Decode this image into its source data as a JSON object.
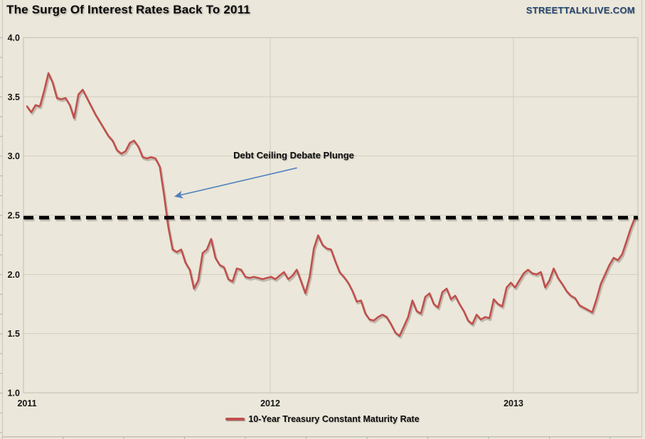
{
  "header": {
    "title": "The Surge Of Interest Rates Back To 2011",
    "brand": "STREETTALKLIVE.COM"
  },
  "legend": {
    "label": "10-Year Treasury Constant Maturity Rate"
  },
  "colors": {
    "background": "#ebe7da",
    "series_red": "#c0504d",
    "reference_black": "#050505",
    "arrow_blue": "#4f81bd",
    "brand_navy": "#24456e",
    "gridline": "#d0ccbf"
  },
  "chart_data": {
    "type": "line",
    "title": "The Surge Of Interest Rates Back To 2011",
    "xlabel": "",
    "ylabel": "",
    "xlim": [
      2011.0,
      2013.5
    ],
    "ylim": [
      1.0,
      4.0
    ],
    "x_tick_labels": [
      "2011",
      "2012",
      "2013"
    ],
    "x_tick_years": [
      2011,
      2012,
      2013
    ],
    "y_tick_labels": [
      "4.0",
      "3.5",
      "3.0",
      "2.5",
      "2.0",
      "1.5",
      "1.0"
    ],
    "y_tick_values": [
      4.0,
      3.5,
      3.0,
      2.5,
      2.0,
      1.5,
      1.0
    ],
    "grid": true,
    "legend_position": "bottom-center",
    "reference_line": {
      "value": 2.48,
      "style": "dashed",
      "color": "#050505",
      "meaning": "2011 rate level that yields surged back to"
    },
    "annotation": {
      "text": "Debt Ceiling Debate Plunge",
      "label_x": 2012.1,
      "label_y": 3.0,
      "arrow_start": [
        2012.11,
        2.9
      ],
      "arrow_end": [
        2011.61,
        2.66
      ]
    },
    "series": [
      {
        "name": "10-Year Treasury Constant Maturity Rate",
        "color": "#c0504d",
        "x_start": 2011.0,
        "x_end": 2013.5,
        "sampling": "weekly, evenly spaced",
        "values": [
          3.42,
          3.37,
          3.43,
          3.42,
          3.55,
          3.7,
          3.62,
          3.49,
          3.48,
          3.49,
          3.43,
          3.32,
          3.52,
          3.56,
          3.49,
          3.42,
          3.35,
          3.29,
          3.23,
          3.17,
          3.13,
          3.05,
          3.02,
          3.04,
          3.11,
          3.13,
          3.08,
          2.99,
          2.98,
          2.99,
          2.98,
          2.91,
          2.67,
          2.4,
          2.21,
          2.19,
          2.21,
          2.1,
          2.04,
          1.88,
          1.95,
          2.18,
          2.21,
          2.3,
          2.14,
          2.08,
          2.06,
          1.96,
          1.94,
          2.05,
          2.04,
          1.98,
          1.97,
          1.98,
          1.97,
          1.96,
          1.97,
          1.98,
          1.96,
          1.99,
          2.02,
          1.96,
          1.99,
          2.04,
          1.94,
          1.84,
          1.98,
          2.22,
          2.33,
          2.25,
          2.22,
          2.21,
          2.11,
          2.02,
          1.98,
          1.93,
          1.86,
          1.77,
          1.78,
          1.67,
          1.62,
          1.61,
          1.64,
          1.66,
          1.64,
          1.58,
          1.51,
          1.48,
          1.56,
          1.64,
          1.78,
          1.69,
          1.67,
          1.81,
          1.84,
          1.75,
          1.72,
          1.85,
          1.88,
          1.79,
          1.82,
          1.75,
          1.69,
          1.61,
          1.58,
          1.66,
          1.62,
          1.64,
          1.63,
          1.79,
          1.75,
          1.73,
          1.89,
          1.93,
          1.89,
          1.95,
          2.01,
          2.04,
          2.01,
          2.0,
          2.02,
          1.89,
          1.95,
          2.05,
          1.97,
          1.92,
          1.86,
          1.82,
          1.8,
          1.74,
          1.72,
          1.7,
          1.68,
          1.79,
          1.92,
          2.0,
          2.08,
          2.14,
          2.12,
          2.17,
          2.28,
          2.39,
          2.48
        ]
      }
    ]
  }
}
